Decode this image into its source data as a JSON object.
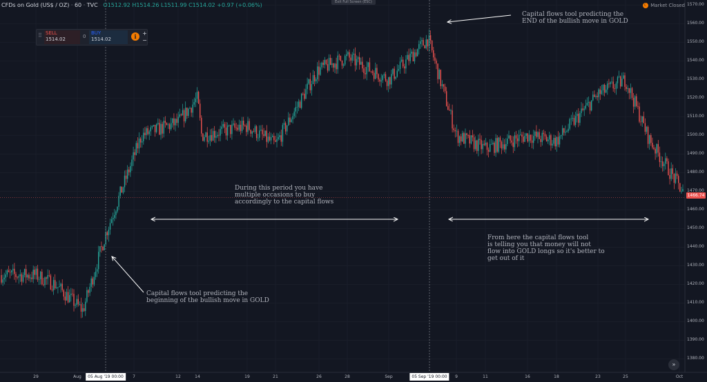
{
  "header": {
    "symbol": "CFDs on Gold (US$ / OZ)",
    "interval": "60",
    "source": "TVC",
    "open": "O1512.92",
    "high": "H1514.26",
    "low": "L1511.99",
    "close": "C1514.02",
    "change": "+0.97 (+0.06%)"
  },
  "exit_fullscreen": "Exit Full Screen (ESC)",
  "market_status": "Market Closed",
  "trade_panel": {
    "sell_label": "SELL",
    "sell_price": "1514.02",
    "spread": "0",
    "buy_label": "BUY",
    "buy_price": "1514.02",
    "plus": "+",
    "minus": "−"
  },
  "annotations": {
    "end_move": [
      "Capital flows tool predicting the",
      "END of the bullish move in GOLD"
    ],
    "begin_move": [
      "Capital flows tool predicting the",
      "beginning of the bullish move in GOLD"
    ],
    "buy_period": [
      "During this period you have",
      "multiple occasions to buy",
      "accordingly to the capital flows"
    ],
    "exit_period": [
      "From here the capital flows tool",
      "is telling you that money will not",
      "flow into GOLD longs so it's better to",
      "get out of it"
    ]
  },
  "colors": {
    "up": "#26a69a",
    "down": "#ef5350",
    "background": "#131722",
    "annotation": "#ffffff"
  },
  "chart_data": {
    "type": "candlestick",
    "instrument": "CFDs on Gold (US$ / OZ)",
    "y_ticks": [
      1380,
      1390,
      1400,
      1410,
      1420,
      1430,
      1440,
      1450,
      1460,
      1470,
      1480,
      1490,
      1500,
      1510,
      1520,
      1530,
      1540,
      1550,
      1560,
      1570
    ],
    "ylim": [
      1375,
      1572
    ],
    "last_price": "1466.74",
    "x_ticks": [
      "29",
      "Aug",
      "7",
      "12",
      "14",
      "19",
      "21",
      "26",
      "28",
      "Sep",
      "9",
      "11",
      "16",
      "18",
      "23",
      "25",
      "Oct"
    ],
    "cursor_labels": [
      "05 Aug '19   00:00",
      "05 Sep '19   00:00"
    ],
    "price_path": [
      {
        "t": "29",
        "p": 1425
      },
      {
        "t": "31",
        "p": 1420
      },
      {
        "t": "Aug",
        "p": 1406
      },
      {
        "t": "05 Aug",
        "p": 1447
      },
      {
        "t": "7",
        "p": 1500
      },
      {
        "t": "12",
        "p": 1507
      },
      {
        "t": "13",
        "p": 1520
      },
      {
        "t": "14",
        "p": 1500
      },
      {
        "t": "19",
        "p": 1505
      },
      {
        "t": "21",
        "p": 1495
      },
      {
        "t": "26",
        "p": 1535
      },
      {
        "t": "28",
        "p": 1542
      },
      {
        "t": "Sep",
        "p": 1530
      },
      {
        "t": "05 Sep",
        "p": 1552
      },
      {
        "t": "9",
        "p": 1500
      },
      {
        "t": "11",
        "p": 1493
      },
      {
        "t": "16",
        "p": 1500
      },
      {
        "t": "18",
        "p": 1497
      },
      {
        "t": "23",
        "p": 1522
      },
      {
        "t": "25",
        "p": 1530
      },
      {
        "t": "27",
        "p": 1498
      },
      {
        "t": "Oct",
        "p": 1466.74
      }
    ]
  }
}
